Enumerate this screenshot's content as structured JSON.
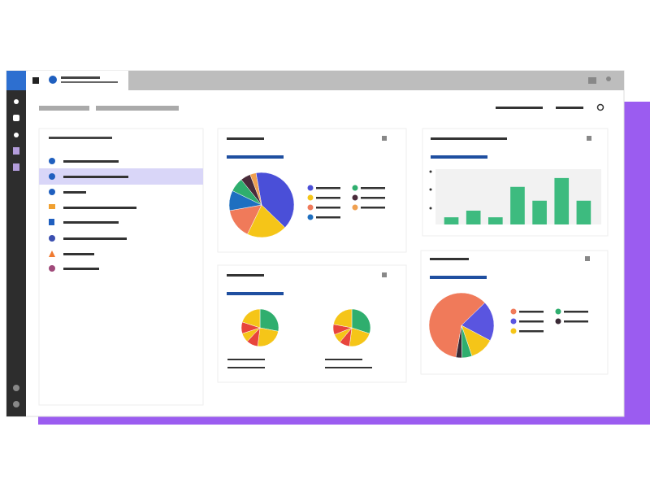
{
  "chart_data": [
    {
      "type": "pie",
      "values": [
        40,
        20,
        15,
        10,
        7,
        5,
        3
      ],
      "colors": [
        "#4a4fd8",
        "#f5c518",
        "#f07a5a",
        "#1e6fc0",
        "#2fae6e",
        "#4a2b3a",
        "#f0a050"
      ]
    },
    {
      "type": "bar",
      "values": [
        13,
        25,
        13,
        68,
        43,
        84,
        43
      ],
      "color": "#3dbb7f",
      "ylim": [
        0,
        100
      ]
    },
    {
      "type": "pie",
      "values": [
        28,
        24,
        10,
        8,
        10,
        20
      ],
      "colors": [
        "#2fae6e",
        "#f5c518",
        "#e8453c",
        "#f5c518",
        "#e8453c",
        "#f5c518"
      ]
    },
    {
      "type": "pie",
      "values": [
        30,
        22,
        9,
        8,
        9,
        22
      ],
      "colors": [
        "#2fae6e",
        "#f5c518",
        "#e8453c",
        "#f5c518",
        "#e8453c",
        "#f5c518"
      ]
    },
    {
      "type": "pie",
      "values": [
        60,
        20,
        12,
        5,
        3
      ],
      "colors": [
        "#f07a5a",
        "#5a55e0",
        "#f5c518",
        "#2fae6e",
        "#3a2a35"
      ]
    }
  ]
}
